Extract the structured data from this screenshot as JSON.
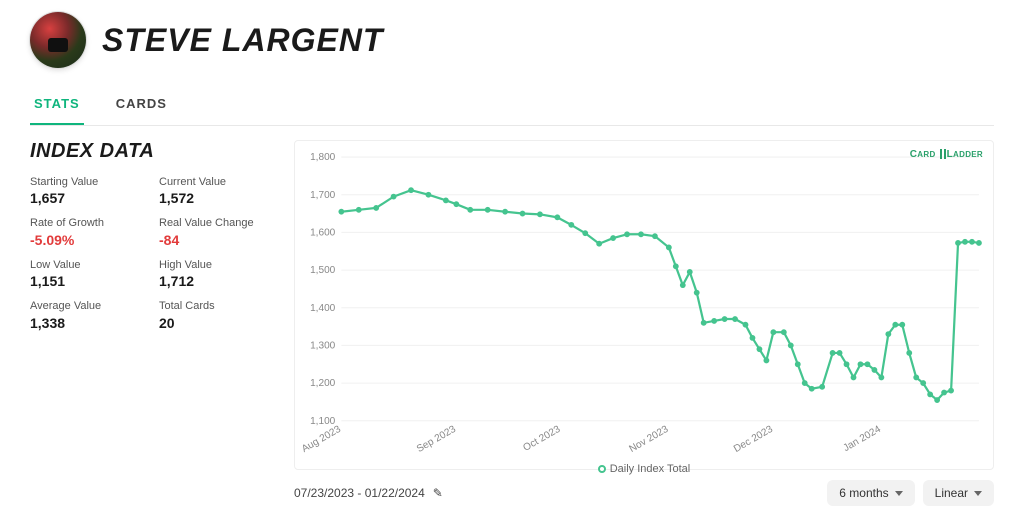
{
  "header": {
    "title": "STEVE LARGENT"
  },
  "tabs": {
    "active": "STATS",
    "items": [
      "STATS",
      "CARDS"
    ]
  },
  "section_title": "INDEX DATA",
  "stats": {
    "starting_value": {
      "label": "Starting Value",
      "value": "1,657",
      "neg": false
    },
    "current_value": {
      "label": "Current Value",
      "value": "1,572",
      "neg": false
    },
    "rate_of_growth": {
      "label": "Rate of Growth",
      "value": "-5.09%",
      "neg": true
    },
    "real_value_change": {
      "label": "Real Value Change",
      "value": "-84",
      "neg": true
    },
    "low_value": {
      "label": "Low Value",
      "value": "1,151",
      "neg": false
    },
    "high_value": {
      "label": "High Value",
      "value": "1,712",
      "neg": false
    },
    "average_value": {
      "label": "Average Value",
      "value": "1,338",
      "neg": false
    },
    "total_cards": {
      "label": "Total Cards",
      "value": "20",
      "neg": false
    }
  },
  "chart": {
    "type": "line",
    "series_name": "Daily Index Total",
    "line_color": "#45c48f",
    "marker_color": "#45c48f",
    "marker_fill": "#ffffff",
    "line_width": 2.2,
    "marker_radius": 2.4,
    "background_color": "#ffffff",
    "grid_color": "#f0f0f0",
    "axis_label_color": "#888888",
    "axis_fontsize": 10,
    "ylim": [
      1100,
      1800
    ],
    "ytick_step": 100,
    "yticks": [
      1100,
      1200,
      1300,
      1400,
      1500,
      1600,
      1700,
      1800
    ],
    "xticks": [
      "Aug 2023",
      "Sep 2023",
      "Oct 2023",
      "Nov 2023",
      "Dec 2023",
      "Jan 2024"
    ],
    "xtick_positions": [
      0,
      33,
      63,
      94,
      124,
      155
    ],
    "x_domain": [
      0,
      183
    ],
    "data": [
      [
        0,
        1655
      ],
      [
        5,
        1660
      ],
      [
        10,
        1665
      ],
      [
        15,
        1695
      ],
      [
        20,
        1712
      ],
      [
        25,
        1700
      ],
      [
        30,
        1685
      ],
      [
        33,
        1675
      ],
      [
        37,
        1660
      ],
      [
        42,
        1660
      ],
      [
        47,
        1655
      ],
      [
        52,
        1650
      ],
      [
        57,
        1648
      ],
      [
        62,
        1640
      ],
      [
        66,
        1620
      ],
      [
        70,
        1598
      ],
      [
        74,
        1570
      ],
      [
        78,
        1585
      ],
      [
        82,
        1595
      ],
      [
        86,
        1595
      ],
      [
        90,
        1590
      ],
      [
        94,
        1560
      ],
      [
        96,
        1510
      ],
      [
        98,
        1460
      ],
      [
        100,
        1495
      ],
      [
        102,
        1440
      ],
      [
        104,
        1360
      ],
      [
        107,
        1365
      ],
      [
        110,
        1370
      ],
      [
        113,
        1370
      ],
      [
        116,
        1355
      ],
      [
        118,
        1320
      ],
      [
        120,
        1290
      ],
      [
        122,
        1260
      ],
      [
        124,
        1335
      ],
      [
        127,
        1335
      ],
      [
        129,
        1300
      ],
      [
        131,
        1250
      ],
      [
        133,
        1200
      ],
      [
        135,
        1185
      ],
      [
        138,
        1190
      ],
      [
        141,
        1280
      ],
      [
        143,
        1280
      ],
      [
        145,
        1250
      ],
      [
        147,
        1215
      ],
      [
        149,
        1250
      ],
      [
        151,
        1250
      ],
      [
        153,
        1235
      ],
      [
        155,
        1215
      ],
      [
        157,
        1330
      ],
      [
        159,
        1355
      ],
      [
        161,
        1355
      ],
      [
        163,
        1280
      ],
      [
        165,
        1215
      ],
      [
        167,
        1200
      ],
      [
        169,
        1170
      ],
      [
        171,
        1155
      ],
      [
        173,
        1175
      ],
      [
        175,
        1180
      ],
      [
        177,
        1572
      ],
      [
        179,
        1575
      ],
      [
        181,
        1575
      ],
      [
        183,
        1572
      ]
    ],
    "logo_text": "CARD LADDER"
  },
  "footer": {
    "date_range": "07/23/2023 - 01/22/2024",
    "range_selector": "6 months",
    "scale_selector": "Linear"
  }
}
